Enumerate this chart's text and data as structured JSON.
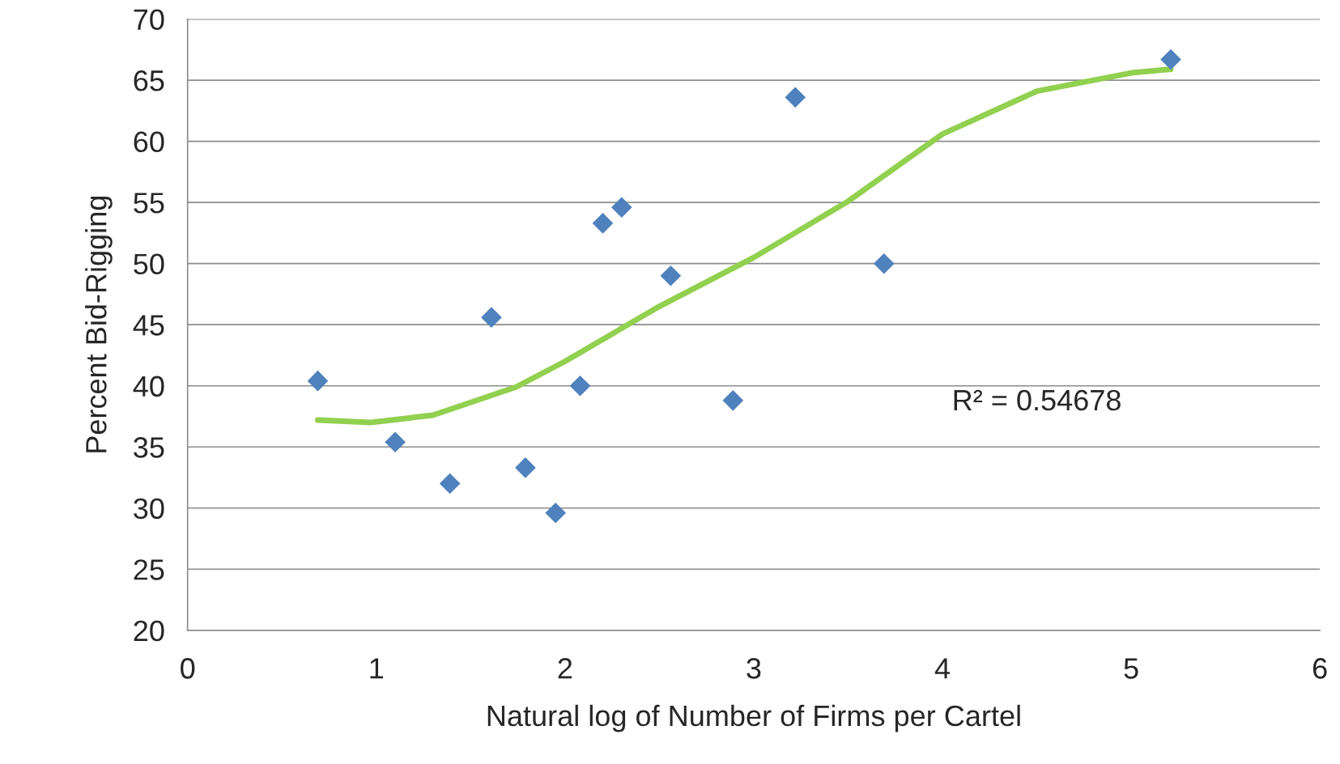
{
  "chart_data": {
    "type": "scatter",
    "xlabel": "Natural log of Number of Firms per Cartel",
    "ylabel": "Percent Bid-Rigging",
    "xlim": [
      0,
      6
    ],
    "xticks": [
      0,
      1,
      2,
      3,
      4,
      5,
      6
    ],
    "ylim": [
      20,
      70
    ],
    "yticks": [
      20,
      25,
      30,
      35,
      40,
      45,
      50,
      55,
      60,
      65,
      70
    ],
    "grid": "y",
    "annotations": [
      "R² = 0.54678"
    ],
    "series": [
      {
        "marker": "diamond",
        "color": "#4f81bd",
        "x": [
          0.69,
          1.1,
          1.39,
          1.61,
          1.79,
          1.95,
          2.08,
          2.2,
          2.3,
          2.56,
          2.89,
          3.22,
          3.69,
          5.21
        ],
        "values": [
          40.4,
          35.4,
          32,
          45.6,
          33.3,
          29.6,
          40,
          53.3,
          54.6,
          49,
          38.8,
          63.6,
          50,
          66.7
        ]
      },
      {
        "type": "line",
        "marker": "none",
        "line_style": "solid",
        "color": "#92d050",
        "x": [
          0.69,
          0.97,
          1.3,
          1.74,
          2.0,
          2.5,
          3.0,
          3.5,
          4.0,
          4.5,
          5.0,
          5.21
        ],
        "values": [
          37.2,
          37.0,
          37.6,
          39.9,
          42.0,
          46.5,
          50.5,
          55.1,
          60.6,
          64.1,
          65.6,
          65.9
        ]
      }
    ]
  }
}
